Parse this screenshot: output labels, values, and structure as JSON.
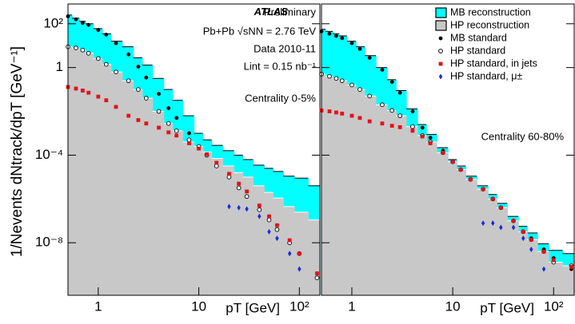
{
  "chart_data": [
    {
      "type": "scatter",
      "xlog": true,
      "ylog": true,
      "ylabel": "1/Nevents dNtrack/dpT [GeV⁻¹]",
      "xlabel": "pT [GeV]",
      "experiment": "ATLAS",
      "status": "Preliminary",
      "annotations": [
        "Pb+Pb √sNN = 2.76 TeV",
        "Data 2010-11",
        "Lint = 0.15 nb⁻¹"
      ],
      "centrality": "Centrality 0-5%",
      "xlim": [
        0.5,
        160
      ],
      "ylim": [
        4e-11,
        800
      ],
      "xticks": [
        1,
        10,
        {
          "value": 100,
          "label": "10²"
        }
      ],
      "yticks": [
        {
          "value": 100,
          "label": "10²"
        },
        1,
        {
          "value": 0.0001,
          "label": "10⁻⁴"
        },
        {
          "value": 1e-08,
          "label": "10⁻⁸"
        }
      ],
      "x": [
        0.5,
        0.6,
        0.7,
        0.8,
        1,
        1.2,
        1.5,
        2,
        2.5,
        3,
        4,
        5,
        6,
        8,
        10,
        12,
        15,
        20,
        25,
        30,
        40,
        50,
        60,
        80,
        100,
        150
      ],
      "series": [
        {
          "color": "#00ffff",
          "marker": "area",
          "values": [
            250.0,
            180.0,
            130.0,
            100.0,
            60.0,
            35.0,
            16.0,
            8.9,
            2.8,
            1.3,
            0.32,
            0.1,
            0.032,
            0.0063,
            0.001,
            0.0005,
            0.00028,
            0.00016,
            0.0001,
            6.3e-05,
            3.5e-05,
            2.5e-05,
            1.8e-05,
            1.1e-05,
            8.9e-06,
            4e-06
          ]
        },
        {
          "color": "#c8c8c8",
          "marker": "area",
          "values": [
            8.9,
            7.9,
            6.3,
            4.5,
            2.6,
            1.4,
            0.63,
            0.25,
            0.1,
            0.04,
            0.01,
            0.0028,
            0.0013,
            0.0004,
            0.00025,
            0.00014,
            7.1e-05,
            3.2e-05,
            1.6e-05,
            1e-05,
            4e-06,
            2e-06,
            1.1e-06,
            4.5e-07,
            2.5e-07,
            1.1e-07
          ]
        },
        {
          "color": "#000000",
          "marker": "dot",
          "values": [
            220.0,
            160.0,
            110.0,
            89.0,
            52.0,
            32.0,
            13.0,
            4.0,
            1.1,
            0.35,
            0.063,
            0.014,
            0.005,
            0.001,
            0.00025,
            0.0001,
            3.2e-05,
            1e-05,
            3.2e-06,
            1.3e-06,
            3.2e-07,
            1.1e-07,
            4e-08,
            1e-08,
            3.2e-09,
            2.5e-10
          ]
        },
        {
          "color": "#000000",
          "marker": "open-circle",
          "values": [
            8.9,
            7.9,
            6.3,
            4.5,
            2.6,
            1.4,
            0.63,
            0.25,
            0.1,
            0.04,
            0.01,
            0.0028,
            0.0013,
            0.0005,
            0.00025,
            0.0001,
            3.2e-05,
            1e-05,
            3.2e-06,
            1.3e-06,
            3.2e-07,
            1.1e-07,
            4e-08,
            1e-08,
            3.2e-09,
            2.5e-10
          ]
        },
        {
          "color": "#e8101a",
          "marker": "square",
          "values": [
            0.13,
            0.11,
            0.089,
            0.071,
            0.047,
            0.032,
            0.016,
            0.0063,
            0.004,
            0.0028,
            0.0018,
            0.0011,
            0.00079,
            0.00035,
            0.0002,
            0.00011,
            4.5e-05,
            1.4e-05,
            5e-06,
            2.2e-06,
            5e-07,
            1.6e-07,
            6.3e-08,
            1.3e-08,
            3.2e-09,
            4e-10
          ]
        },
        {
          "color": "#1a2be0",
          "marker": "diamond",
          "values": [
            null,
            null,
            null,
            null,
            null,
            null,
            null,
            null,
            null,
            null,
            null,
            null,
            null,
            null,
            null,
            null,
            null,
            4.5e-07,
            4e-07,
            3.5e-07,
            1.6e-07,
            3.2e-08,
            1.6e-08,
            3.2e-09,
            6.3e-10,
            null
          ]
        }
      ]
    },
    {
      "type": "scatter",
      "xlog": true,
      "ylog": true,
      "xlabel": "pT [GeV]",
      "centrality": "Centrality 60-80%",
      "legend": "upper right",
      "xlim": [
        0.5,
        160
      ],
      "ylim": [
        4e-11,
        800
      ],
      "xticks": [
        1,
        10,
        {
          "value": 100,
          "label": "10²"
        }
      ],
      "x": [
        0.5,
        0.6,
        0.7,
        0.8,
        1,
        1.2,
        1.5,
        2,
        2.5,
        3,
        4,
        5,
        6,
        8,
        10,
        12,
        15,
        20,
        25,
        30,
        40,
        50,
        60,
        80,
        100,
        150
      ],
      "series": [
        {
          "name": "MB reconstruction",
          "color": "#00ffff",
          "marker": "area",
          "values": [
            56.0,
            45.0,
            35.0,
            28.0,
            16.0,
            8.9,
            3.5,
            1.0,
            0.28,
            0.089,
            0.013,
            0.0025,
            0.00089,
            0.00022,
            6.3e-05,
            3.2e-05,
            1.1e-05,
            4e-06,
            1.6e-06,
            6.3e-07,
            1.6e-07,
            5.6e-08,
            2.8e-08,
            8.9e-09,
            4.5e-09,
            3.2e-09
          ]
        },
        {
          "name": "HP reconstruction",
          "color": "#c8c8c8",
          "marker": "area",
          "values": [
            0.5,
            0.4,
            0.32,
            0.25,
            0.16,
            0.1,
            0.05,
            0.02,
            0.011,
            0.0063,
            0.002,
            0.00079,
            0.0004,
            0.00013,
            5e-05,
            2.2e-05,
            7.9e-06,
            2.8e-06,
            1e-06,
            4e-07,
            1e-07,
            3.2e-08,
            1.4e-08,
            4e-09,
            1.3e-09,
            8.9e-10
          ]
        },
        {
          "name": "MB standard",
          "color": "#000000",
          "marker": "dot",
          "values": [
            45.0,
            35.0,
            28.0,
            22.0,
            13.0,
            7.1,
            2.8,
            0.79,
            0.22,
            0.071,
            0.01,
            0.0018,
            0.00063,
            0.00016,
            5e-05,
            2.2e-05,
            7.9e-06,
            2.8e-06,
            1e-06,
            4e-07,
            1e-07,
            3.2e-08,
            1.6e-08,
            5e-09,
            2e-09,
            6.3e-10
          ]
        },
        {
          "name": "HP standard",
          "color": "#000000",
          "marker": "open-circle",
          "values": [
            0.5,
            0.4,
            0.32,
            0.25,
            0.16,
            0.1,
            0.05,
            0.02,
            0.011,
            0.0063,
            0.002,
            0.00079,
            0.0004,
            0.00013,
            5e-05,
            2.2e-05,
            7.9e-06,
            2.8e-06,
            1e-06,
            4e-07,
            1e-07,
            3.2e-08,
            1.4e-08,
            4e-09,
            1.3e-09,
            8.9e-10
          ]
        },
        {
          "name": "HP standard, in jets",
          "color": "#e8101a",
          "marker": "square",
          "values": [
            0.011,
            0.01,
            0.0089,
            0.0079,
            0.0063,
            0.005,
            0.0035,
            0.0028,
            0.0022,
            0.0019,
            0.0013,
            0.00071,
            0.00035,
            0.00013,
            5e-05,
            2.2e-05,
            7.9e-06,
            2.8e-06,
            1e-06,
            4e-07,
            1e-07,
            3.2e-08,
            1.4e-08,
            4e-09,
            1.6e-09,
            7.9e-10
          ]
        },
        {
          "name": "HP standard, μ±",
          "color": "#1a2be0",
          "marker": "diamond",
          "values": [
            null,
            null,
            null,
            null,
            null,
            null,
            null,
            null,
            null,
            null,
            null,
            null,
            null,
            null,
            null,
            null,
            null,
            7.9e-08,
            7.9e-08,
            5e-08,
            5e-08,
            1.6e-08,
            5e-09,
            6.3e-10,
            null,
            null
          ]
        }
      ]
    }
  ]
}
